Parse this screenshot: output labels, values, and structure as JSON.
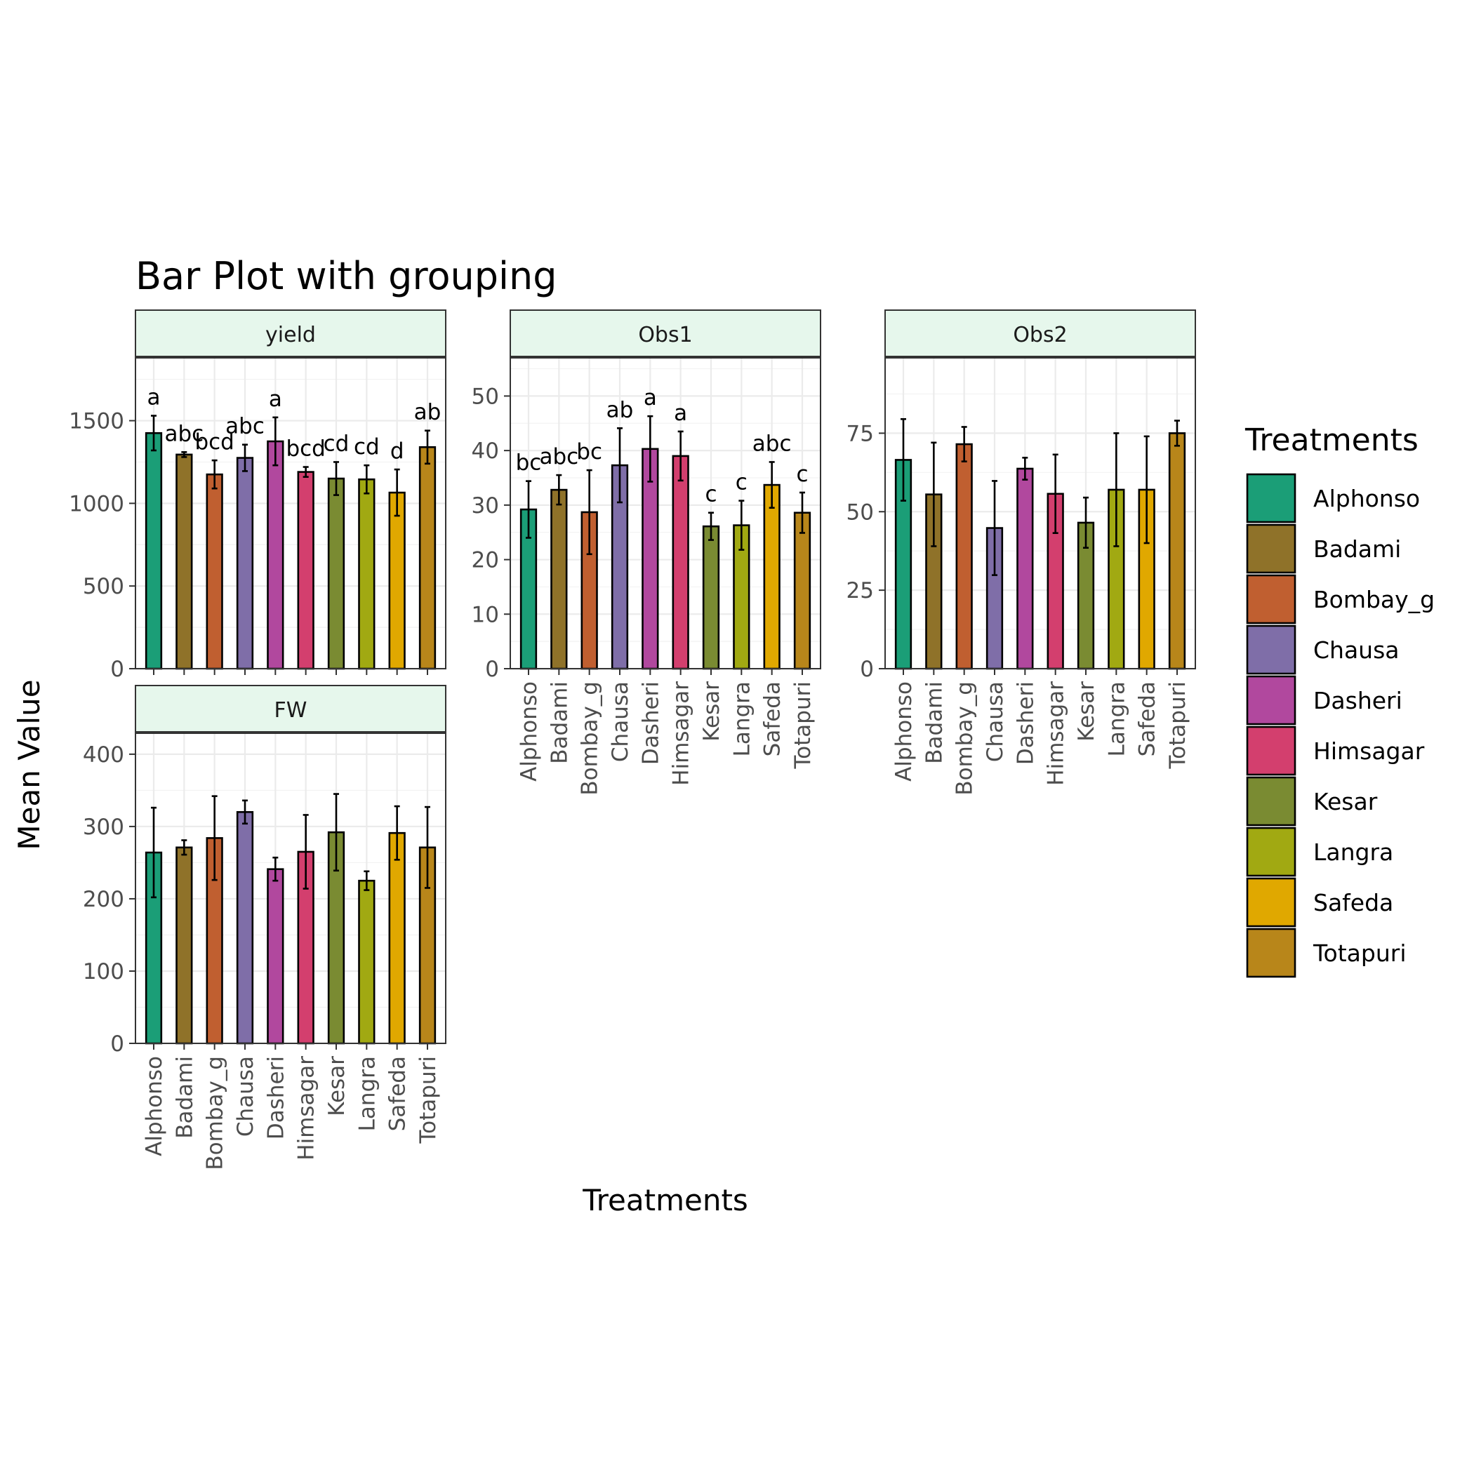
{
  "chart_data": {
    "type": "bar",
    "title": "Bar Plot with grouping",
    "xlabel": "Treatments",
    "ylabel": "Mean Value",
    "categories": [
      "Alphonso",
      "Badami",
      "Bombay_g",
      "Chausa",
      "Dasheri",
      "Himsagar",
      "Kesar",
      "Langra",
      "Safeda",
      "Totapuri"
    ],
    "colors": [
      "#1b9e77",
      "#8f7229",
      "#c05f30",
      "#7f6ea8",
      "#b1489e",
      "#d33f6e",
      "#7a8b32",
      "#a1a912",
      "#e0a800",
      "#b8861a"
    ],
    "legend": {
      "title": "Treatments",
      "position": "right"
    },
    "grid": true,
    "panels": [
      {
        "name": "yield",
        "ylim": [
          0,
          1880
        ],
        "ticks": [
          0,
          500,
          1000,
          1500
        ],
        "values": [
          1425,
          1295,
          1175,
          1275,
          1375,
          1190,
          1150,
          1145,
          1065,
          1340
        ],
        "errors": [
          105,
          15,
          85,
          80,
          145,
          30,
          100,
          85,
          140,
          100
        ],
        "letters": [
          "a",
          "abc",
          "bcd",
          "abc",
          "a",
          "bcd",
          "cd",
          "cd",
          "d",
          "ab"
        ],
        "show_x_labels": false
      },
      {
        "name": "Obs1",
        "ylim": [
          0,
          57
        ],
        "ticks": [
          0,
          10,
          20,
          30,
          40,
          50
        ],
        "values": [
          29.2,
          32.8,
          28.7,
          37.3,
          40.3,
          39.0,
          26.1,
          26.3,
          33.7,
          28.6
        ],
        "errors": [
          5.2,
          2.7,
          7.7,
          6.8,
          6.0,
          4.5,
          2.5,
          4.5,
          4.2,
          3.7
        ],
        "letters": [
          "bc",
          "abc",
          "bc",
          "ab",
          "a",
          "a",
          "c",
          "c",
          "abc",
          "c"
        ],
        "show_x_labels": true
      },
      {
        "name": "Obs2",
        "ylim": [
          0,
          99
        ],
        "ticks": [
          0,
          25,
          50,
          75
        ],
        "values": [
          66.5,
          55.5,
          71.5,
          44.8,
          63.7,
          55.7,
          46.5,
          57.0,
          57.0,
          75.0
        ],
        "errors": [
          13.0,
          16.5,
          5.5,
          15.0,
          3.5,
          12.5,
          8.0,
          18.0,
          17.0,
          4.0
        ],
        "letters": [],
        "show_x_labels": true
      },
      {
        "name": "FW",
        "ylim": [
          0,
          429
        ],
        "ticks": [
          0,
          100,
          200,
          300,
          400
        ],
        "values": [
          264,
          271,
          284,
          320,
          241,
          265,
          292,
          225,
          291,
          271
        ],
        "errors": [
          62,
          10,
          58,
          16,
          16,
          51,
          53,
          13,
          37,
          56
        ],
        "letters": [],
        "show_x_labels": true
      }
    ]
  }
}
